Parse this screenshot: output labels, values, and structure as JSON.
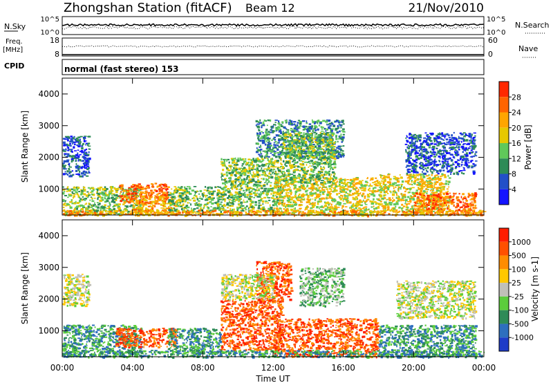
{
  "header": {
    "station": "Zhongshan Station (fitACF)",
    "beam": "Beam 12",
    "date": "21/Nov/2010"
  },
  "top_panels": {
    "nsky_label": "N.Sky",
    "nsearch_label": "N.Search",
    "nsky_ticks": [
      "10^5",
      "10^0"
    ],
    "nsearch_ticks": [
      "10^5",
      "10^0"
    ],
    "freq_label": "Freq.",
    "freq_unit": "[MHz]",
    "freq_ticks": [
      "18",
      "8"
    ],
    "nave_label": "Nave",
    "nave_ticks": [
      "60",
      "0"
    ],
    "cpid_label": "CPID",
    "cpid_text": "normal (fast stereo) 153"
  },
  "chart_data": [
    {
      "type": "heatmap",
      "panel": "power",
      "xlabel": "",
      "ylabel": "Slant Range [km]",
      "x_ticks": [
        "00:00",
        "04:00",
        "08:00",
        "12:00",
        "16:00",
        "20:00",
        "00:00"
      ],
      "y_ticks": [
        "1000",
        "2000",
        "3000",
        "4000"
      ],
      "yrange_km": [
        180,
        4500
      ],
      "xrange_hours": [
        0,
        24
      ],
      "colorbar": {
        "label": "Power [dB]",
        "tick_labels": [
          "4",
          "8",
          "12",
          "16",
          "20",
          "24",
          "28"
        ],
        "colors": [
          "#1414ff",
          "#2350c8",
          "#2e8b57",
          "#60c85a",
          "#e6c800",
          "#ffa500",
          "#ff6400",
          "#ff2800"
        ]
      },
      "echo_regions": [
        {
          "t": [
            0.0,
            4.5
          ],
          "r": [
            200,
            1100
          ],
          "level": 3
        },
        {
          "t": [
            3.2,
            6.0
          ],
          "r": [
            600,
            1200
          ],
          "level": 6
        },
        {
          "t": [
            4.0,
            6.5
          ],
          "r": [
            200,
            800
          ],
          "level": 5
        },
        {
          "t": [
            6.0,
            9.0
          ],
          "r": [
            300,
            1100
          ],
          "level": 3
        },
        {
          "t": [
            9.0,
            12.5
          ],
          "r": [
            300,
            2000
          ],
          "level": 3
        },
        {
          "t": [
            11.0,
            16.0
          ],
          "r": [
            2000,
            3200
          ],
          "level": 2
        },
        {
          "t": [
            12.0,
            18.0
          ],
          "r": [
            200,
            1400
          ],
          "level": 4
        },
        {
          "t": [
            12.5,
            15.5
          ],
          "r": [
            1200,
            2800
          ],
          "level": 3
        },
        {
          "t": [
            18.0,
            22.0
          ],
          "r": [
            300,
            1500
          ],
          "level": 4
        },
        {
          "t": [
            19.5,
            23.5
          ],
          "r": [
            1500,
            2800
          ],
          "level": 1
        },
        {
          "t": [
            20.0,
            23.5
          ],
          "r": [
            200,
            900
          ],
          "level": 6
        },
        {
          "t": [
            0.0,
            1.5
          ],
          "r": [
            1400,
            2700
          ],
          "level": 1
        },
        {
          "t": [
            0.0,
            24.0
          ],
          "r": [
            180,
            350
          ],
          "level": 5
        }
      ]
    },
    {
      "type": "heatmap",
      "panel": "velocity",
      "xlabel": "Time UT",
      "ylabel": "Slant Range [km]",
      "x_ticks": [
        "00:00",
        "04:00",
        "08:00",
        "12:00",
        "16:00",
        "20:00",
        "00:00"
      ],
      "y_ticks": [
        "1000",
        "2000",
        "3000",
        "4000"
      ],
      "yrange_km": [
        180,
        4500
      ],
      "xrange_hours": [
        0,
        24
      ],
      "colorbar": {
        "label": "Velocity [m s-1]",
        "tick_labels": [
          "1000",
          "500",
          "100",
          "25",
          "-25",
          "-100",
          "-500",
          "-1000"
        ],
        "colors": [
          "#1e3cc8",
          "#2e6fbe",
          "#2e8b57",
          "#5ccd3c",
          "#c0c0b8",
          "#ffc800",
          "#ff8c00",
          "#ff5000",
          "#ff1e00"
        ]
      },
      "echo_regions": [
        {
          "t": [
            0.0,
            4.5
          ],
          "r": [
            200,
            1200
          ],
          "level": 2
        },
        {
          "t": [
            3.0,
            6.5
          ],
          "r": [
            500,
            1100
          ],
          "level": 7
        },
        {
          "t": [
            6.0,
            9.0
          ],
          "r": [
            300,
            1100
          ],
          "level": 2
        },
        {
          "t": [
            9.0,
            12.5
          ],
          "r": [
            400,
            2000
          ],
          "level": 7
        },
        {
          "t": [
            11.0,
            13.0
          ],
          "r": [
            2000,
            3200
          ],
          "level": 7
        },
        {
          "t": [
            9.0,
            12.0
          ],
          "r": [
            2000,
            2800
          ],
          "level": 4
        },
        {
          "t": [
            12.0,
            18.0
          ],
          "r": [
            200,
            1400
          ],
          "level": 7
        },
        {
          "t": [
            13.5,
            16.0
          ],
          "r": [
            1800,
            3000
          ],
          "level": 3
        },
        {
          "t": [
            18.0,
            23.5
          ],
          "r": [
            200,
            1200
          ],
          "level": 2
        },
        {
          "t": [
            19.0,
            23.5
          ],
          "r": [
            1400,
            2600
          ],
          "level": 4
        },
        {
          "t": [
            0.0,
            1.5
          ],
          "r": [
            1800,
            2800
          ],
          "level": 4
        },
        {
          "t": [
            0.0,
            24.0
          ],
          "r": [
            180,
            400
          ],
          "level": 2
        }
      ]
    }
  ]
}
